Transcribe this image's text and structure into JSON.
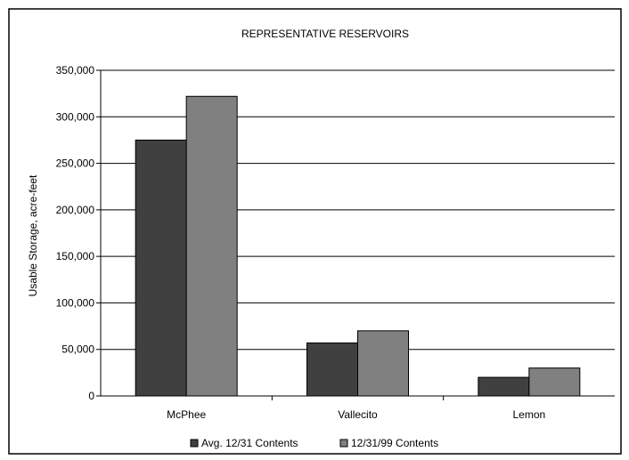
{
  "chart_data": {
    "type": "bar",
    "title": "REPRESENTATIVE RESERVOIRS",
    "xlabel": "",
    "ylabel": "Usable Storage, acre-feet",
    "categories": [
      "McPhee",
      "Vallecito",
      "Lemon"
    ],
    "series": [
      {
        "name": "Avg. 12/31 Contents",
        "values": [
          275000,
          57000,
          20000
        ],
        "color": "#404040"
      },
      {
        "name": "12/31/99 Contents",
        "values": [
          322000,
          70000,
          30000
        ],
        "color": "#808080"
      }
    ],
    "ylim": [
      0,
      350000
    ],
    "yticks": [
      0,
      50000,
      100000,
      150000,
      200000,
      250000,
      300000,
      350000
    ],
    "ytick_labels": [
      "0",
      "50,000",
      "100,000",
      "150,000",
      "200,000",
      "250,000",
      "300,000",
      "350,000"
    ],
    "grid": true,
    "legend_position": "bottom"
  }
}
